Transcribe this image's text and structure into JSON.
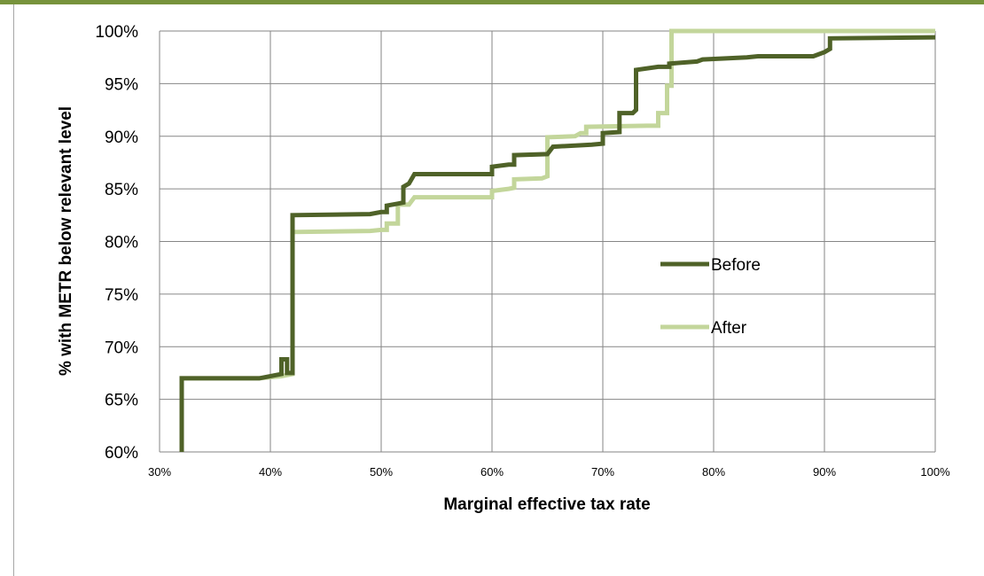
{
  "chart_data": {
    "type": "line",
    "title": "",
    "xlabel": "Marginal effective tax rate",
    "ylabel": "% with METR below relevant level",
    "xlim": [
      0.3,
      1.0
    ],
    "ylim": [
      0.6,
      1.0
    ],
    "x_ticks": [
      "30%",
      "40%",
      "50%",
      "60%",
      "70%",
      "80%",
      "90%",
      "100%"
    ],
    "y_ticks": [
      "60%",
      "65%",
      "70%",
      "75%",
      "80%",
      "85%",
      "90%",
      "95%",
      "100%"
    ],
    "grid": true,
    "legend_position": "right",
    "series": [
      {
        "name": "Before",
        "color": "#4f6228",
        "x": [
          0.32,
          0.32,
          0.39,
          0.41,
          0.41,
          0.415,
          0.415,
          0.42,
          0.42,
          0.49,
          0.5,
          0.505,
          0.505,
          0.515,
          0.52,
          0.52,
          0.525,
          0.53,
          0.6,
          0.6,
          0.615,
          0.62,
          0.62,
          0.65,
          0.655,
          0.69,
          0.7,
          0.7,
          0.715,
          0.715,
          0.727,
          0.73,
          0.73,
          0.75,
          0.76,
          0.76,
          0.785,
          0.79,
          0.83,
          0.84,
          0.89,
          0.9,
          0.905,
          0.905,
          1.0
        ],
        "y": [
          0.6,
          0.67,
          0.67,
          0.674,
          0.688,
          0.688,
          0.675,
          0.675,
          0.825,
          0.826,
          0.828,
          0.828,
          0.834,
          0.836,
          0.837,
          0.852,
          0.855,
          0.864,
          0.864,
          0.871,
          0.873,
          0.873,
          0.882,
          0.883,
          0.89,
          0.892,
          0.893,
          0.903,
          0.904,
          0.922,
          0.922,
          0.925,
          0.963,
          0.966,
          0.966,
          0.969,
          0.971,
          0.973,
          0.975,
          0.976,
          0.976,
          0.98,
          0.983,
          0.993,
          0.994
        ]
      },
      {
        "name": "After",
        "color": "#c3d69b",
        "x": [
          0.32,
          0.32,
          0.39,
          0.41,
          0.42,
          0.42,
          0.49,
          0.5,
          0.505,
          0.505,
          0.515,
          0.515,
          0.525,
          0.53,
          0.6,
          0.6,
          0.615,
          0.62,
          0.62,
          0.645,
          0.65,
          0.65,
          0.675,
          0.68,
          0.685,
          0.685,
          0.74,
          0.75,
          0.75,
          0.758,
          0.758,
          0.762,
          0.762,
          1.0
        ],
        "y": [
          0.6,
          0.67,
          0.67,
          0.672,
          0.674,
          0.809,
          0.81,
          0.811,
          0.811,
          0.817,
          0.817,
          0.835,
          0.835,
          0.842,
          0.842,
          0.848,
          0.85,
          0.851,
          0.859,
          0.86,
          0.862,
          0.899,
          0.9,
          0.903,
          0.903,
          0.909,
          0.91,
          0.91,
          0.922,
          0.922,
          0.948,
          0.948,
          1.0,
          1.0
        ]
      }
    ]
  }
}
